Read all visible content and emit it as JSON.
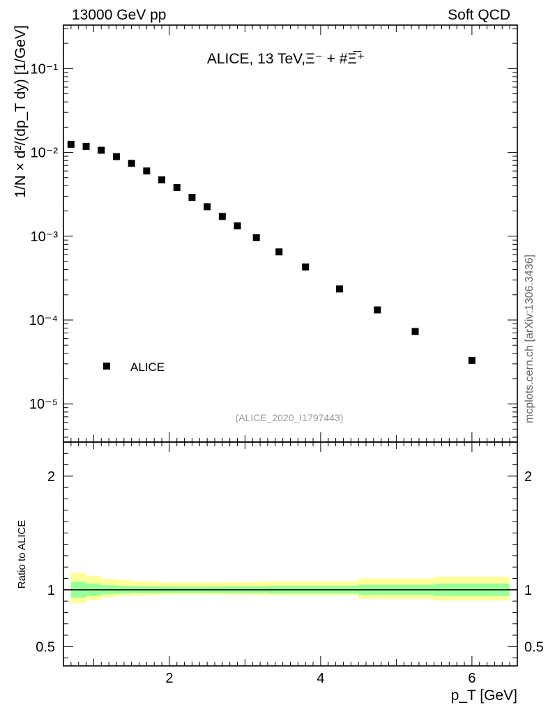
{
  "header": {
    "left": "13000 GeV pp",
    "right": "Soft QCD"
  },
  "side_label": "mcplots.cern.ch [arXiv:1306.3436]",
  "chart_data": [
    {
      "type": "scatter",
      "title": "ALICE, 13 TeV,Ξ⁻ + #Ξ̅⁺",
      "watermark": "(ALICE_2020_I1797443)",
      "ylabel": "1/N × d²/(dp_T dy) [1/GeV]",
      "yscale": "log",
      "xlim": [
        0.6,
        6.6
      ],
      "ylim": [
        3.5e-06,
        0.33
      ],
      "ytick_labels": [
        "10⁻⁵",
        "10⁻⁴",
        "10⁻³",
        "10⁻²",
        "10⁻¹"
      ],
      "legend": {
        "position": "bottom-left",
        "entries": [
          "ALICE"
        ]
      },
      "series": [
        {
          "name": "ALICE",
          "x": [
            0.7,
            0.9,
            1.1,
            1.3,
            1.5,
            1.7,
            1.9,
            2.1,
            2.3,
            2.5,
            2.7,
            2.9,
            3.15,
            3.45,
            3.8,
            4.25,
            4.75,
            5.25,
            6.0
          ],
          "y": [
            0.0125,
            0.0118,
            0.0106,
            0.0089,
            0.0074,
            0.006,
            0.0047,
            0.0038,
            0.0029,
            0.00225,
            0.00172,
            0.00133,
            0.00096,
            0.00065,
            0.00043,
            0.000235,
            0.000132,
            7.3e-05,
            3.3e-05
          ]
        }
      ]
    },
    {
      "type": "area",
      "xlabel": "p_T [GeV]",
      "ylabel": "Ratio to ALICE",
      "xlim": [
        0.6,
        6.6
      ],
      "ylim": [
        0.33,
        2.3
      ],
      "xtick_labels": [
        "2",
        "4",
        "6"
      ],
      "ytick_labels": [
        "0.5",
        "1",
        "2"
      ],
      "reference_line": 1,
      "bins": [
        {
          "lo": 0.7,
          "hi": 0.9,
          "stat": [
            0.93,
            1.07
          ],
          "total": [
            0.88,
            1.15
          ]
        },
        {
          "lo": 0.9,
          "hi": 1.1,
          "stat": [
            0.945,
            1.055
          ],
          "total": [
            0.91,
            1.12
          ]
        },
        {
          "lo": 1.1,
          "hi": 1.3,
          "stat": [
            0.96,
            1.04
          ],
          "total": [
            0.935,
            1.095
          ]
        },
        {
          "lo": 1.3,
          "hi": 1.5,
          "stat": [
            0.965,
            1.035
          ],
          "total": [
            0.945,
            1.085
          ]
        },
        {
          "lo": 1.5,
          "hi": 1.7,
          "stat": [
            0.97,
            1.03
          ],
          "total": [
            0.95,
            1.075
          ]
        },
        {
          "lo": 1.7,
          "hi": 1.9,
          "stat": [
            0.97,
            1.03
          ],
          "total": [
            0.955,
            1.07
          ]
        },
        {
          "lo": 1.9,
          "hi": 2.1,
          "stat": [
            0.972,
            1.028
          ],
          "total": [
            0.958,
            1.065
          ]
        },
        {
          "lo": 2.1,
          "hi": 2.3,
          "stat": [
            0.972,
            1.028
          ],
          "total": [
            0.958,
            1.065
          ]
        },
        {
          "lo": 2.3,
          "hi": 2.5,
          "stat": [
            0.972,
            1.028
          ],
          "total": [
            0.958,
            1.065
          ]
        },
        {
          "lo": 2.5,
          "hi": 2.7,
          "stat": [
            0.972,
            1.028
          ],
          "total": [
            0.958,
            1.065
          ]
        },
        {
          "lo": 2.7,
          "hi": 2.9,
          "stat": [
            0.97,
            1.03
          ],
          "total": [
            0.955,
            1.068
          ]
        },
        {
          "lo": 2.9,
          "hi": 3.3,
          "stat": [
            0.97,
            1.03
          ],
          "total": [
            0.955,
            1.07
          ]
        },
        {
          "lo": 3.3,
          "hi": 3.6,
          "stat": [
            0.965,
            1.035
          ],
          "total": [
            0.95,
            1.075
          ]
        },
        {
          "lo": 3.6,
          "hi": 4.0,
          "stat": [
            0.965,
            1.035
          ],
          "total": [
            0.95,
            1.075
          ]
        },
        {
          "lo": 4.0,
          "hi": 4.5,
          "stat": [
            0.965,
            1.035
          ],
          "total": [
            0.95,
            1.075
          ]
        },
        {
          "lo": 4.5,
          "hi": 5.0,
          "stat": [
            0.955,
            1.045
          ],
          "total": [
            0.92,
            1.1
          ]
        },
        {
          "lo": 5.0,
          "hi": 5.5,
          "stat": [
            0.955,
            1.045
          ],
          "total": [
            0.92,
            1.1
          ]
        },
        {
          "lo": 5.5,
          "hi": 6.5,
          "stat": [
            0.945,
            1.055
          ],
          "total": [
            0.905,
            1.115
          ]
        }
      ]
    }
  ],
  "colors": {
    "marker": "#000000",
    "stat_band": "#99ff99",
    "total_band": "#ffff99",
    "watermark": "#999999",
    "side_label": "#666666"
  }
}
